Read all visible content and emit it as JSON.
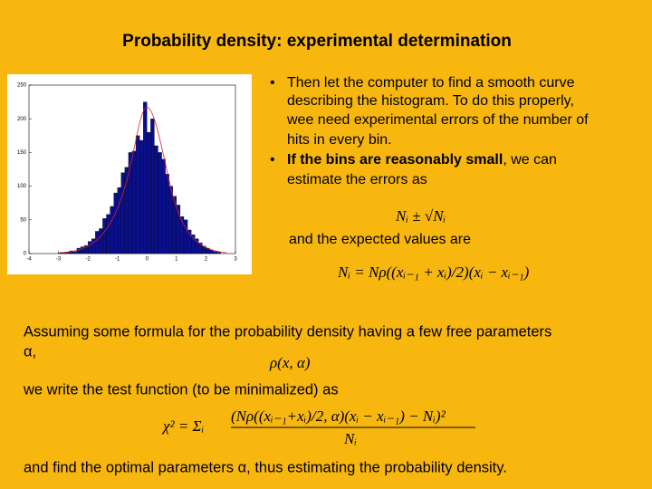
{
  "title": "Probability density: experimental determination",
  "bullets": [
    [
      "Then let the computer to find a smooth curve",
      "describing the histogram. To do this properly,",
      "wee need experimental errors of the number of",
      "hits in every bin."
    ],
    {
      "bold": "If the bins are reasonably small",
      "rest": ", we can",
      "line2": "estimate the errors as"
    }
  ],
  "error_formula": "Nᵢ ± √Nᵢ",
  "expected_intro": "and the expected values are",
  "expected_formula": "Nᵢ = Nρ((xᵢ₋₁ + xᵢ)/2)(xᵢ − xᵢ₋₁)",
  "assume_text": "Assuming some formula for the probability density having a few free parameters",
  "alpha_line": "α,",
  "density_formula": "ρ(x, α)",
  "test_intro": "we write the test function (to be minimalized) as",
  "chi2_lhs": "χ² = Σᵢ",
  "chi2_num": "(Nρ((xᵢ₋₁+xᵢ)/2, α)(xᵢ − xᵢ₋₁) − Nᵢ)²",
  "chi2_den": "Nᵢ",
  "conclusion": "and find the optimal parameters α, thus estimating the probability density.",
  "chart_data": {
    "type": "histogram",
    "color": "#0a0f8c",
    "bins": [
      -3.0,
      -2.875,
      -2.75,
      -2.625,
      -2.5,
      -2.375,
      -2.25,
      -2.125,
      -2.0,
      -1.875,
      -1.75,
      -1.625,
      -1.5,
      -1.375,
      -1.25,
      -1.125,
      -1.0,
      -0.875,
      -0.75,
      -0.625,
      -0.5,
      -0.375,
      -0.25,
      -0.125,
      0.0,
      0.125,
      0.25,
      0.375,
      0.5,
      0.625,
      0.75,
      0.875,
      1.0,
      1.125,
      1.25,
      1.375,
      1.5,
      1.625,
      1.75,
      1.875,
      2.0,
      2.125,
      2.25,
      2.375,
      2.5
    ],
    "values": [
      1,
      1,
      2,
      4,
      3,
      8,
      10,
      12,
      18,
      22,
      33,
      37,
      52,
      58,
      70,
      90,
      98,
      120,
      128,
      150,
      152,
      175,
      168,
      225,
      180,
      200,
      160,
      150,
      140,
      118,
      100,
      85,
      72,
      55,
      50,
      35,
      28,
      22,
      16,
      11,
      8,
      5,
      3,
      2
    ],
    "xlim": [
      -4,
      3
    ],
    "xticks": [
      -4,
      -3,
      -2,
      -1,
      0,
      1,
      2,
      3
    ],
    "ylim": [
      0,
      250
    ],
    "yticks": [
      0,
      50,
      100,
      150,
      200,
      250
    ]
  }
}
